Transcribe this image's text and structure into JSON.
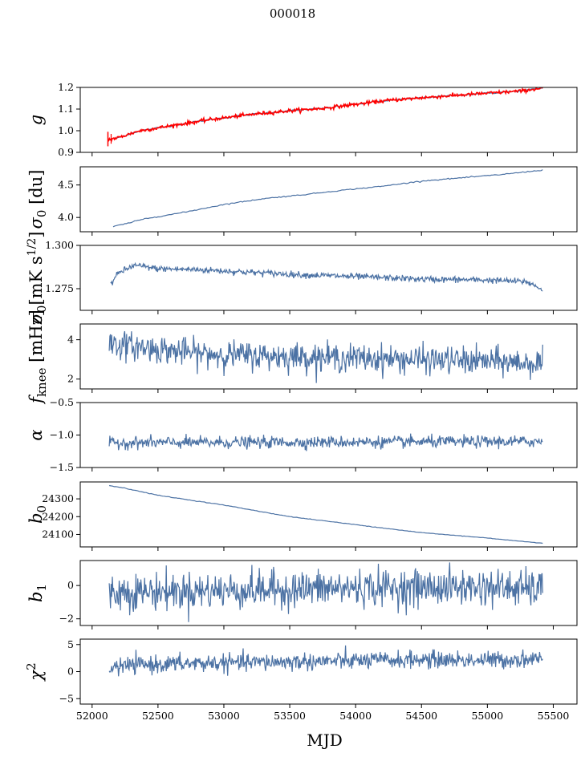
{
  "figure": {
    "title": "000018"
  },
  "chart_data": {
    "type": "line",
    "xlabel": "MJD",
    "xlim": [
      51910,
      55680
    ],
    "xticks": [
      52000,
      52500,
      53000,
      53500,
      54000,
      54500,
      55000,
      55500
    ],
    "x_range_data": [
      52120,
      55420
    ],
    "line_color": "#4c72a4",
    "fit_color": "#ff0000",
    "panels": [
      {
        "id": "g",
        "ylabel": "g",
        "ylim": [
          0.9,
          1.2
        ],
        "yticks": [
          {
            "v": 0.9,
            "t": "0.9"
          },
          {
            "v": 1.0,
            "t": "1.0"
          },
          {
            "v": 1.1,
            "t": "1.1"
          },
          {
            "v": 1.2,
            "t": "1.2"
          }
        ],
        "kind": "trend",
        "points": [
          [
            52120,
            0.958
          ],
          [
            52200,
            0.968
          ],
          [
            52350,
            0.998
          ],
          [
            52600,
            1.023
          ],
          [
            52900,
            1.052
          ],
          [
            53250,
            1.078
          ],
          [
            53500,
            1.092
          ],
          [
            53750,
            1.103
          ],
          [
            54000,
            1.122
          ],
          [
            54250,
            1.14
          ],
          [
            54500,
            1.152
          ],
          [
            54750,
            1.163
          ],
          [
            55000,
            1.173
          ],
          [
            55250,
            1.183
          ],
          [
            55420,
            1.197
          ]
        ],
        "noise": 0.002,
        "has_fit": true,
        "fit_noise": 0.004
      },
      {
        "id": "sigma0_du",
        "ylabel": "σ0 [du]",
        "ylim": [
          3.78,
          4.78
        ],
        "yticks": [
          {
            "v": 4.0,
            "t": "4.0"
          },
          {
            "v": 4.5,
            "t": "4.5"
          }
        ],
        "kind": "trend",
        "points": [
          [
            52160,
            3.86
          ],
          [
            52250,
            3.9
          ],
          [
            52400,
            3.98
          ],
          [
            52700,
            4.08
          ],
          [
            53000,
            4.2
          ],
          [
            53300,
            4.29
          ],
          [
            53600,
            4.35
          ],
          [
            53900,
            4.42
          ],
          [
            54200,
            4.48
          ],
          [
            54500,
            4.56
          ],
          [
            54800,
            4.61
          ],
          [
            55100,
            4.66
          ],
          [
            55420,
            4.73
          ]
        ],
        "noise": 0.004
      },
      {
        "id": "sigma0_mk",
        "ylabel": "σ0[mK s1/2]",
        "ylim": [
          1.2625,
          1.3
        ],
        "yticks": [
          {
            "v": 1.275,
            "t": "1.275"
          },
          {
            "v": 1.3,
            "t": "1.300"
          }
        ],
        "kind": "noisy",
        "points": [
          [
            52140,
            1.2775
          ],
          [
            52200,
            1.284
          ],
          [
            52320,
            1.2885
          ],
          [
            52500,
            1.2865
          ],
          [
            52800,
            1.286
          ],
          [
            53200,
            1.2845
          ],
          [
            53600,
            1.283
          ],
          [
            54000,
            1.282
          ],
          [
            54500,
            1.2805
          ],
          [
            55000,
            1.28
          ],
          [
            55300,
            1.279
          ],
          [
            55420,
            1.2745
          ]
        ],
        "noise": 0.0009
      },
      {
        "id": "fknee",
        "ylabel": "fknee [mHz]",
        "ylim": [
          1.5,
          4.8
        ],
        "yticks": [
          {
            "v": 2,
            "t": "2"
          },
          {
            "v": 4,
            "t": "4"
          }
        ],
        "kind": "noisy",
        "points": [
          [
            52130,
            3.8
          ],
          [
            52400,
            3.6
          ],
          [
            52800,
            3.3
          ],
          [
            53200,
            3.2
          ],
          [
            53800,
            3.1
          ],
          [
            54400,
            3.0
          ],
          [
            55000,
            2.9
          ],
          [
            55420,
            2.8
          ]
        ],
        "noise": 0.35
      },
      {
        "id": "alpha",
        "ylabel": "α",
        "ylim": [
          -1.5,
          -0.5
        ],
        "yticks": [
          {
            "v": -1.5,
            "t": "−1.5"
          },
          {
            "v": -1.0,
            "t": "−1.0"
          },
          {
            "v": -0.5,
            "t": "−0.5"
          }
        ],
        "kind": "noisy",
        "points": [
          [
            52130,
            -1.12
          ],
          [
            55420,
            -1.1
          ]
        ],
        "noise": 0.045
      },
      {
        "id": "b0",
        "ylabel": "b0",
        "ylim": [
          24030,
          24395
        ],
        "yticks": [
          {
            "v": 24100,
            "t": "24100"
          },
          {
            "v": 24200,
            "t": "24200"
          },
          {
            "v": 24300,
            "t": "24300"
          }
        ],
        "kind": "trend",
        "points": [
          [
            52130,
            24375
          ],
          [
            52250,
            24360
          ],
          [
            52500,
            24320
          ],
          [
            53000,
            24265
          ],
          [
            53500,
            24200
          ],
          [
            54000,
            24155
          ],
          [
            54500,
            24110
          ],
          [
            55000,
            24080
          ],
          [
            55420,
            24050
          ]
        ],
        "noise": 0.8
      },
      {
        "id": "b1",
        "ylabel": "b1",
        "ylim": [
          -2.4,
          1.5
        ],
        "yticks": [
          {
            "v": -2,
            "t": "−2"
          },
          {
            "v": 0,
            "t": "0"
          }
        ],
        "kind": "noisy",
        "points": [
          [
            52130,
            -0.4
          ],
          [
            53000,
            -0.3
          ],
          [
            54000,
            -0.15
          ],
          [
            55000,
            -0.1
          ],
          [
            55420,
            -0.25
          ]
        ],
        "noise": 0.55
      },
      {
        "id": "chi2",
        "ylabel": "χ2",
        "ylim": [
          -6,
          6
        ],
        "yticks": [
          {
            "v": -5,
            "t": "−5"
          },
          {
            "v": 0,
            "t": "0"
          },
          {
            "v": 5,
            "t": "5"
          }
        ],
        "kind": "noisy",
        "points": [
          [
            52130,
            0.8
          ],
          [
            52400,
            1.3
          ],
          [
            53000,
            1.6
          ],
          [
            54000,
            2.0
          ],
          [
            54500,
            2.2
          ],
          [
            55000,
            2.1
          ],
          [
            55420,
            2.4
          ]
        ],
        "noise": 0.8
      }
    ]
  }
}
